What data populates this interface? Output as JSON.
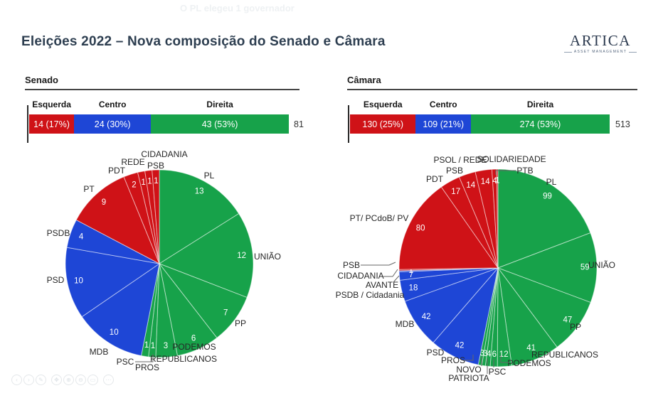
{
  "page": {
    "ghost_text": "O PL elegeu 1 governador",
    "title": "Eleições 2022 – Nova composição do Senado e Câmara",
    "logo": {
      "name": "ARTICA",
      "subtitle": "ASSET MANAGEMENT"
    }
  },
  "colors": {
    "esquerda": "#cf1217",
    "centro": "#1e46d6",
    "direita": "#17a24a",
    "title": "#2d3e50"
  },
  "toolbar": {
    "icons": [
      {
        "name": "previous",
        "glyph": "‹"
      },
      {
        "name": "next",
        "glyph": "›"
      },
      {
        "name": "edit",
        "glyph": "✎"
      },
      {
        "name": "pan",
        "glyph": "✥"
      },
      {
        "name": "zoom-in",
        "glyph": "⊕"
      },
      {
        "name": "zoom-out",
        "glyph": "⊖"
      },
      {
        "name": "fit-screen",
        "glyph": "▭"
      },
      {
        "name": "more",
        "glyph": "⋯"
      }
    ]
  },
  "chart_data": [
    {
      "type": "bar",
      "subtype": "stacked-horizontal",
      "chamber": "Senado",
      "total": 81,
      "total_label": "81",
      "groups": [
        "Esquerda",
        "Centro",
        "Direita"
      ],
      "values": [
        14,
        24,
        43
      ],
      "labels": [
        "14 (17%)",
        "24 (30%)",
        "43 (53%)"
      ],
      "colors": [
        "#cf1217",
        "#1e46d6",
        "#17a24a"
      ]
    },
    {
      "type": "pie",
      "chamber": "Senado",
      "start": "top",
      "direction": "clockwise",
      "bloc_colors": {
        "esquerda": "#cf1217",
        "centro": "#1e46d6",
        "direita": "#17a24a"
      },
      "slices": [
        {
          "party": "PL",
          "seats": 13,
          "bloc": "direita"
        },
        {
          "party": "UNIÃO",
          "seats": 12,
          "bloc": "direita"
        },
        {
          "party": "PP",
          "seats": 7,
          "bloc": "direita"
        },
        {
          "party": "PODEMOS",
          "seats": 6,
          "bloc": "direita"
        },
        {
          "party": "REPUBLICANOS",
          "seats": 3,
          "bloc": "direita"
        },
        {
          "party": "PROS",
          "seats": 1,
          "bloc": "direita"
        },
        {
          "party": "PSC",
          "seats": 1,
          "bloc": "direita"
        },
        {
          "party": "MDB",
          "seats": 10,
          "bloc": "centro"
        },
        {
          "party": "PSD",
          "seats": 10,
          "bloc": "centro"
        },
        {
          "party": "PSDB",
          "seats": 4,
          "bloc": "centro"
        },
        {
          "party": "PT",
          "seats": 9,
          "bloc": "esquerda"
        },
        {
          "party": "PDT",
          "seats": 2,
          "bloc": "esquerda"
        },
        {
          "party": "REDE",
          "seats": 1,
          "bloc": "esquerda"
        },
        {
          "party": "PSB",
          "seats": 1,
          "bloc": "esquerda"
        },
        {
          "party": "CIDADANIA",
          "seats": 1,
          "bloc": "esquerda"
        }
      ]
    },
    {
      "type": "bar",
      "subtype": "stacked-horizontal",
      "chamber": "Câmara",
      "total": 513,
      "total_label": "513",
      "groups": [
        "Esquerda",
        "Centro",
        "Direita"
      ],
      "values": [
        130,
        109,
        274
      ],
      "labels": [
        "130 (25%)",
        "109 (21%)",
        "274 (53%)"
      ],
      "colors": [
        "#cf1217",
        "#1e46d6",
        "#17a24a"
      ]
    },
    {
      "type": "pie",
      "chamber": "Câmara",
      "start": "top",
      "direction": "clockwise",
      "bloc_colors": {
        "esquerda": "#cf1217",
        "centro": "#1e46d6",
        "direita": "#17a24a"
      },
      "slices": [
        {
          "party": "PL",
          "seats": 99,
          "bloc": "direita"
        },
        {
          "party": "UNIÃO",
          "seats": 59,
          "bloc": "direita"
        },
        {
          "party": "PP",
          "seats": 47,
          "bloc": "direita"
        },
        {
          "party": "REPUBLICANOS",
          "seats": 41,
          "bloc": "direita"
        },
        {
          "party": "PODEMOS",
          "seats": 12,
          "bloc": "direita"
        },
        {
          "party": "PSC",
          "seats": 6,
          "bloc": "direita"
        },
        {
          "party": "PATRIOTA",
          "seats": 4,
          "bloc": "direita"
        },
        {
          "party": "NOVO",
          "seats": 3,
          "bloc": "direita"
        },
        {
          "party": "PROS",
          "seats": 3,
          "bloc": "direita"
        },
        {
          "party": "PSD",
          "seats": 42,
          "bloc": "centro"
        },
        {
          "party": "MDB",
          "seats": 42,
          "bloc": "centro"
        },
        {
          "party": "PSDB / Cidadania",
          "seats": 18,
          "bloc": "centro"
        },
        {
          "party": "AVANTE",
          "seats": 7,
          "bloc": "centro"
        },
        {
          "party": "CIDADANIA",
          "seats": 1,
          "bloc": "centro"
        },
        {
          "party": "PSB",
          "seats": 1,
          "bloc": "esquerda"
        },
        {
          "party": "PT/ PCdoB/ PV",
          "seats": 80,
          "bloc": "esquerda"
        },
        {
          "party": "PDT",
          "seats": 17,
          "bloc": "esquerda"
        },
        {
          "party": "PSB",
          "seats": 14,
          "bloc": "esquerda"
        },
        {
          "party": "PSOL / REDE",
          "seats": 14,
          "bloc": "esquerda"
        },
        {
          "party": "SOLIDARIEDADE",
          "seats": 4,
          "bloc": "esquerda"
        },
        {
          "party": "PTB",
          "seats": 1,
          "bloc": "esquerda"
        }
      ]
    }
  ]
}
